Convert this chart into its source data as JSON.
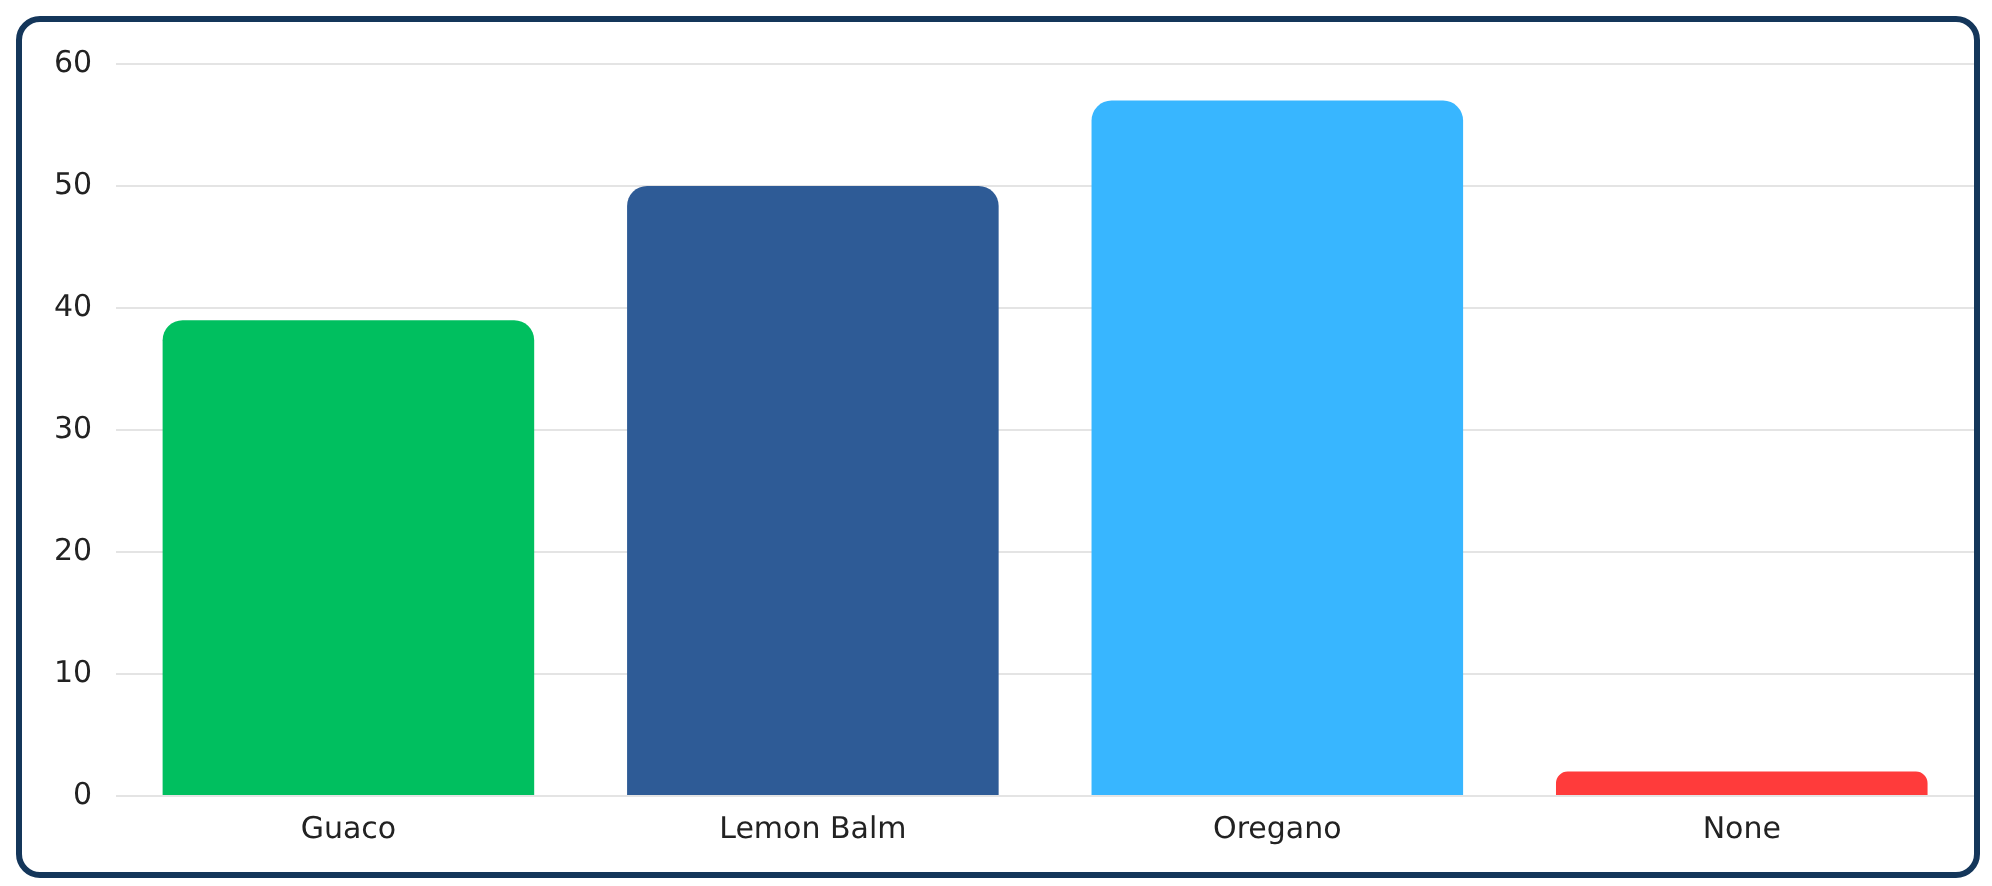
{
  "chart_data": {
    "type": "bar",
    "categories": [
      "Guaco",
      "Lemon Balm",
      "Oregano",
      "None"
    ],
    "values": [
      39,
      50,
      57,
      2
    ],
    "colors": [
      "#00bf5f",
      "#2e5b96",
      "#38b6ff",
      "#ff3b3b"
    ],
    "ylim": [
      0,
      60
    ],
    "yticks": [
      0,
      10,
      20,
      30,
      40,
      50,
      60
    ],
    "grid": "y",
    "legend": false
  }
}
